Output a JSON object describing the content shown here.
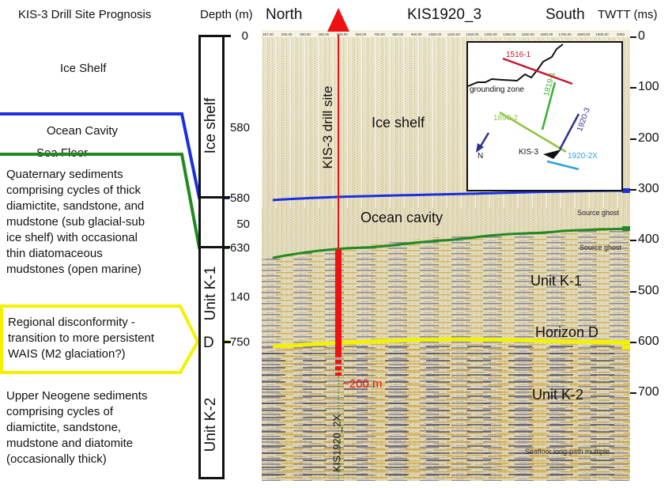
{
  "header": {
    "title": "KIS-3 Drill Site Prognosis",
    "depth_label": "Depth (m)",
    "north": "North",
    "line_name": "KIS1920_3",
    "south": "South",
    "twtt_label": "TWTT (ms)"
  },
  "layers": {
    "ice_shelf": "Ice Shelf",
    "ocean_cavity": "Ocean Cavity",
    "sea_floor": "Sea Floor",
    "quaternary": "Quaternary sediments\ncomprising cycles of thick\ndiamictite, sandstone, and\nmudstone (sub glacial-sub\nice shelf) with occasional\nthin diatomaceous\nmudstones (open marine)",
    "disconformity": "Regional disconformity -\ntransition to more persistent\nWAIS (M2 glaciation?)",
    "neogene": "Upper Neogene sediments\ncomprising cycles of\ndiamictite, sandstone,\nmudstone and diatomite\n(occasionally thick)"
  },
  "column": {
    "ice_shelf": "Ice shelf",
    "unit_k1": "Unit K-1",
    "d": "D",
    "unit_k2": "Unit K-2"
  },
  "depths": {
    "d0": "0",
    "d580": "580",
    "d580_thick": "580",
    "d50": "50",
    "d630": "630",
    "d140": "140",
    "d750": "750"
  },
  "twtt_ticks": [
    "0",
    "100",
    "200",
    "300",
    "400",
    "500",
    "600",
    "700"
  ],
  "section": {
    "drill_site": "KIS-3 drill site",
    "ice_shelf": "Ice shelf",
    "ocean_cavity": "Ocean cavity",
    "unit_k1": "Unit K-1",
    "horizon_d": "Horizon D",
    "unit_k2": "Unit K-2",
    "penetration": "~200 m",
    "crossline": "KIS1920_2X",
    "source_ghost_1": "Source ghost",
    "source_ghost_2": "Source ghost",
    "multiple": "Seafloor long-path multiple",
    "top_ticks": [
      "257.00",
      "290.00",
      "360.00",
      "460.00",
      "560.00",
      "660.00",
      "760.00",
      "860.00",
      "960.00",
      "1060.00",
      "1160.00",
      "1260.00",
      "1360.00",
      "1460.00",
      "1560.00",
      "1660.00",
      "1760.00",
      "1860.00",
      "1960.00",
      "2060"
    ]
  },
  "inset": {
    "l1516": "1516-1",
    "grounding": "grounding zone",
    "l1819": "1819-1",
    "l1890": "1890-2",
    "l1920_3": "1920-3",
    "kis3": "KIS-3",
    "l1920_2x": "1920-2X",
    "north": "N"
  },
  "colors": {
    "ocean_base": "#1a2fe0",
    "sea_floor": "#1f8a1f",
    "horizon_d": "#f2f200",
    "drill": "#ee1111",
    "line_1516": "#c0182a",
    "line_1819": "#38b030",
    "line_1890": "#8cc63f",
    "line_1920_3": "#2e3192",
    "line_1920_2x": "#29a3e0"
  }
}
